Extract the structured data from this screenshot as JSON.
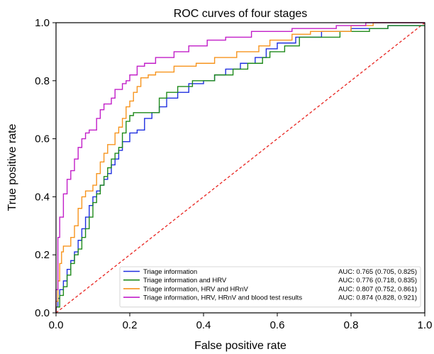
{
  "chart_data": {
    "type": "line",
    "title": "ROC curves of four stages",
    "xlabel": "False positive rate",
    "ylabel": "True positive rate",
    "xlim": [
      0,
      1
    ],
    "ylim": [
      0,
      1
    ],
    "xticks": [
      "0.0",
      "0.2",
      "0.4",
      "0.6",
      "0.8",
      "1.0"
    ],
    "yticks": [
      "0.0",
      "0.2",
      "0.4",
      "0.6",
      "0.8",
      "1.0"
    ],
    "grid": false,
    "legend_position": "bottom-right",
    "reference_line": {
      "from": [
        0,
        0
      ],
      "to": [
        1,
        1
      ],
      "color": "#e8231f",
      "style": "dashed"
    },
    "series": [
      {
        "name": "Triage information",
        "auc": "AUC: 0.765 (0.705, 0.825)",
        "color": "#1f2fe0",
        "points": [
          [
            0,
            0
          ],
          [
            0,
            0.02
          ],
          [
            0.005,
            0.02
          ],
          [
            0.005,
            0.05
          ],
          [
            0.01,
            0.05
          ],
          [
            0.01,
            0.08
          ],
          [
            0.02,
            0.08
          ],
          [
            0.02,
            0.11
          ],
          [
            0.03,
            0.11
          ],
          [
            0.03,
            0.15
          ],
          [
            0.04,
            0.15
          ],
          [
            0.04,
            0.18
          ],
          [
            0.05,
            0.18
          ],
          [
            0.05,
            0.21
          ],
          [
            0.06,
            0.21
          ],
          [
            0.06,
            0.25
          ],
          [
            0.07,
            0.25
          ],
          [
            0.07,
            0.29
          ],
          [
            0.08,
            0.29
          ],
          [
            0.08,
            0.33
          ],
          [
            0.09,
            0.33
          ],
          [
            0.09,
            0.37
          ],
          [
            0.1,
            0.37
          ],
          [
            0.1,
            0.4
          ],
          [
            0.11,
            0.4
          ],
          [
            0.11,
            0.42
          ],
          [
            0.12,
            0.42
          ],
          [
            0.12,
            0.44
          ],
          [
            0.13,
            0.44
          ],
          [
            0.13,
            0.46
          ],
          [
            0.14,
            0.46
          ],
          [
            0.14,
            0.48
          ],
          [
            0.15,
            0.48
          ],
          [
            0.15,
            0.51
          ],
          [
            0.16,
            0.51
          ],
          [
            0.16,
            0.53
          ],
          [
            0.17,
            0.53
          ],
          [
            0.17,
            0.56
          ],
          [
            0.18,
            0.56
          ],
          [
            0.18,
            0.59
          ],
          [
            0.2,
            0.59
          ],
          [
            0.2,
            0.62
          ],
          [
            0.22,
            0.62
          ],
          [
            0.22,
            0.63
          ],
          [
            0.24,
            0.63
          ],
          [
            0.24,
            0.67
          ],
          [
            0.26,
            0.67
          ],
          [
            0.26,
            0.69
          ],
          [
            0.28,
            0.69
          ],
          [
            0.28,
            0.71
          ],
          [
            0.3,
            0.71
          ],
          [
            0.3,
            0.74
          ],
          [
            0.33,
            0.74
          ],
          [
            0.33,
            0.76
          ],
          [
            0.36,
            0.76
          ],
          [
            0.36,
            0.79
          ],
          [
            0.4,
            0.79
          ],
          [
            0.4,
            0.8
          ],
          [
            0.43,
            0.8
          ],
          [
            0.43,
            0.82
          ],
          [
            0.46,
            0.82
          ],
          [
            0.46,
            0.84
          ],
          [
            0.5,
            0.84
          ],
          [
            0.5,
            0.86
          ],
          [
            0.54,
            0.86
          ],
          [
            0.54,
            0.88
          ],
          [
            0.57,
            0.88
          ],
          [
            0.57,
            0.91
          ],
          [
            0.6,
            0.91
          ],
          [
            0.6,
            0.93
          ],
          [
            0.65,
            0.93
          ],
          [
            0.65,
            0.95
          ],
          [
            0.72,
            0.95
          ],
          [
            0.72,
            0.97
          ],
          [
            0.8,
            0.97
          ],
          [
            0.8,
            0.98
          ],
          [
            0.9,
            0.98
          ],
          [
            0.9,
            0.99
          ],
          [
            1,
            0.99
          ]
        ]
      },
      {
        "name": "Triage information and HRV",
        "auc": "AUC: 0.776 (0.718, 0.835)",
        "color": "#1e8a1a",
        "points": [
          [
            0,
            0
          ],
          [
            0,
            0.02
          ],
          [
            0.01,
            0.02
          ],
          [
            0.01,
            0.06
          ],
          [
            0.02,
            0.06
          ],
          [
            0.02,
            0.09
          ],
          [
            0.03,
            0.09
          ],
          [
            0.03,
            0.13
          ],
          [
            0.04,
            0.13
          ],
          [
            0.04,
            0.17
          ],
          [
            0.05,
            0.17
          ],
          [
            0.05,
            0.2
          ],
          [
            0.06,
            0.2
          ],
          [
            0.06,
            0.22
          ],
          [
            0.07,
            0.22
          ],
          [
            0.07,
            0.26
          ],
          [
            0.08,
            0.26
          ],
          [
            0.08,
            0.29
          ],
          [
            0.09,
            0.29
          ],
          [
            0.09,
            0.33
          ],
          [
            0.1,
            0.33
          ],
          [
            0.1,
            0.38
          ],
          [
            0.11,
            0.38
          ],
          [
            0.11,
            0.41
          ],
          [
            0.12,
            0.41
          ],
          [
            0.12,
            0.44
          ],
          [
            0.13,
            0.44
          ],
          [
            0.13,
            0.47
          ],
          [
            0.14,
            0.47
          ],
          [
            0.14,
            0.5
          ],
          [
            0.15,
            0.5
          ],
          [
            0.15,
            0.53
          ],
          [
            0.16,
            0.53
          ],
          [
            0.16,
            0.55
          ],
          [
            0.17,
            0.55
          ],
          [
            0.17,
            0.57
          ],
          [
            0.18,
            0.57
          ],
          [
            0.18,
            0.62
          ],
          [
            0.19,
            0.62
          ],
          [
            0.19,
            0.66
          ],
          [
            0.2,
            0.66
          ],
          [
            0.2,
            0.68
          ],
          [
            0.21,
            0.68
          ],
          [
            0.21,
            0.69
          ],
          [
            0.28,
            0.69
          ],
          [
            0.28,
            0.74
          ],
          [
            0.3,
            0.74
          ],
          [
            0.3,
            0.76
          ],
          [
            0.33,
            0.76
          ],
          [
            0.33,
            0.78
          ],
          [
            0.37,
            0.78
          ],
          [
            0.37,
            0.8
          ],
          [
            0.43,
            0.8
          ],
          [
            0.43,
            0.82
          ],
          [
            0.48,
            0.82
          ],
          [
            0.48,
            0.84
          ],
          [
            0.52,
            0.84
          ],
          [
            0.52,
            0.86
          ],
          [
            0.56,
            0.86
          ],
          [
            0.56,
            0.88
          ],
          [
            0.58,
            0.88
          ],
          [
            0.58,
            0.9
          ],
          [
            0.62,
            0.9
          ],
          [
            0.62,
            0.92
          ],
          [
            0.66,
            0.92
          ],
          [
            0.66,
            0.95
          ],
          [
            0.77,
            0.95
          ],
          [
            0.77,
            0.97
          ],
          [
            0.85,
            0.97
          ],
          [
            0.85,
            0.98
          ],
          [
            0.9,
            0.98
          ],
          [
            0.9,
            0.99
          ],
          [
            1,
            0.99
          ]
        ]
      },
      {
        "name": "Triage information, HRV and HRnV",
        "auc": "AUC: 0.807 (0.752, 0.861)",
        "color": "#f7941d",
        "points": [
          [
            0,
            0
          ],
          [
            0,
            0.04
          ],
          [
            0.005,
            0.04
          ],
          [
            0.005,
            0.11
          ],
          [
            0.01,
            0.11
          ],
          [
            0.01,
            0.17
          ],
          [
            0.015,
            0.17
          ],
          [
            0.015,
            0.21
          ],
          [
            0.02,
            0.21
          ],
          [
            0.02,
            0.23
          ],
          [
            0.04,
            0.23
          ],
          [
            0.04,
            0.26
          ],
          [
            0.05,
            0.26
          ],
          [
            0.05,
            0.3
          ],
          [
            0.06,
            0.3
          ],
          [
            0.06,
            0.36
          ],
          [
            0.07,
            0.36
          ],
          [
            0.07,
            0.4
          ],
          [
            0.08,
            0.4
          ],
          [
            0.08,
            0.42
          ],
          [
            0.1,
            0.42
          ],
          [
            0.1,
            0.44
          ],
          [
            0.11,
            0.44
          ],
          [
            0.11,
            0.48
          ],
          [
            0.12,
            0.48
          ],
          [
            0.12,
            0.52
          ],
          [
            0.13,
            0.52
          ],
          [
            0.13,
            0.55
          ],
          [
            0.14,
            0.55
          ],
          [
            0.14,
            0.58
          ],
          [
            0.16,
            0.58
          ],
          [
            0.16,
            0.62
          ],
          [
            0.17,
            0.62
          ],
          [
            0.17,
            0.64
          ],
          [
            0.18,
            0.64
          ],
          [
            0.18,
            0.67
          ],
          [
            0.19,
            0.67
          ],
          [
            0.19,
            0.71
          ],
          [
            0.2,
            0.71
          ],
          [
            0.2,
            0.73
          ],
          [
            0.21,
            0.73
          ],
          [
            0.21,
            0.76
          ],
          [
            0.22,
            0.76
          ],
          [
            0.22,
            0.78
          ],
          [
            0.23,
            0.78
          ],
          [
            0.23,
            0.81
          ],
          [
            0.25,
            0.81
          ],
          [
            0.25,
            0.82
          ],
          [
            0.27,
            0.82
          ],
          [
            0.27,
            0.83
          ],
          [
            0.32,
            0.83
          ],
          [
            0.32,
            0.85
          ],
          [
            0.38,
            0.85
          ],
          [
            0.38,
            0.86
          ],
          [
            0.43,
            0.86
          ],
          [
            0.43,
            0.88
          ],
          [
            0.49,
            0.88
          ],
          [
            0.49,
            0.9
          ],
          [
            0.55,
            0.9
          ],
          [
            0.55,
            0.92
          ],
          [
            0.58,
            0.92
          ],
          [
            0.58,
            0.94
          ],
          [
            0.64,
            0.94
          ],
          [
            0.64,
            0.96
          ],
          [
            0.69,
            0.96
          ],
          [
            0.69,
            0.97
          ],
          [
            0.8,
            0.97
          ],
          [
            0.8,
            0.99
          ],
          [
            0.86,
            0.99
          ],
          [
            0.86,
            1.0
          ],
          [
            1,
            1.0
          ]
        ]
      },
      {
        "name": "Triage information, HRV, HRnV and blood test results",
        "auc": "AUC: 0.874 (0.828, 0.921)",
        "color": "#c21ec8",
        "points": [
          [
            0,
            0
          ],
          [
            0,
            0.08
          ],
          [
            0.005,
            0.08
          ],
          [
            0.005,
            0.26
          ],
          [
            0.01,
            0.26
          ],
          [
            0.01,
            0.33
          ],
          [
            0.02,
            0.33
          ],
          [
            0.02,
            0.41
          ],
          [
            0.03,
            0.41
          ],
          [
            0.03,
            0.46
          ],
          [
            0.04,
            0.46
          ],
          [
            0.04,
            0.49
          ],
          [
            0.05,
            0.49
          ],
          [
            0.05,
            0.53
          ],
          [
            0.06,
            0.53
          ],
          [
            0.06,
            0.57
          ],
          [
            0.07,
            0.57
          ],
          [
            0.07,
            0.6
          ],
          [
            0.08,
            0.6
          ],
          [
            0.08,
            0.62
          ],
          [
            0.09,
            0.62
          ],
          [
            0.09,
            0.63
          ],
          [
            0.11,
            0.63
          ],
          [
            0.11,
            0.67
          ],
          [
            0.12,
            0.67
          ],
          [
            0.12,
            0.7
          ],
          [
            0.13,
            0.7
          ],
          [
            0.13,
            0.72
          ],
          [
            0.15,
            0.72
          ],
          [
            0.15,
            0.74
          ],
          [
            0.16,
            0.74
          ],
          [
            0.16,
            0.77
          ],
          [
            0.18,
            0.77
          ],
          [
            0.18,
            0.79
          ],
          [
            0.19,
            0.79
          ],
          [
            0.19,
            0.8
          ],
          [
            0.2,
            0.8
          ],
          [
            0.2,
            0.82
          ],
          [
            0.22,
            0.82
          ],
          [
            0.22,
            0.85
          ],
          [
            0.24,
            0.85
          ],
          [
            0.24,
            0.86
          ],
          [
            0.27,
            0.86
          ],
          [
            0.27,
            0.88
          ],
          [
            0.32,
            0.88
          ],
          [
            0.32,
            0.9
          ],
          [
            0.36,
            0.9
          ],
          [
            0.36,
            0.92
          ],
          [
            0.41,
            0.92
          ],
          [
            0.41,
            0.94
          ],
          [
            0.46,
            0.94
          ],
          [
            0.46,
            0.95
          ],
          [
            0.53,
            0.95
          ],
          [
            0.53,
            0.97
          ],
          [
            0.64,
            0.97
          ],
          [
            0.64,
            0.98
          ],
          [
            0.76,
            0.98
          ],
          [
            0.76,
            0.99
          ],
          [
            0.84,
            0.99
          ],
          [
            0.84,
            1.0
          ],
          [
            1,
            1.0
          ]
        ]
      }
    ]
  }
}
